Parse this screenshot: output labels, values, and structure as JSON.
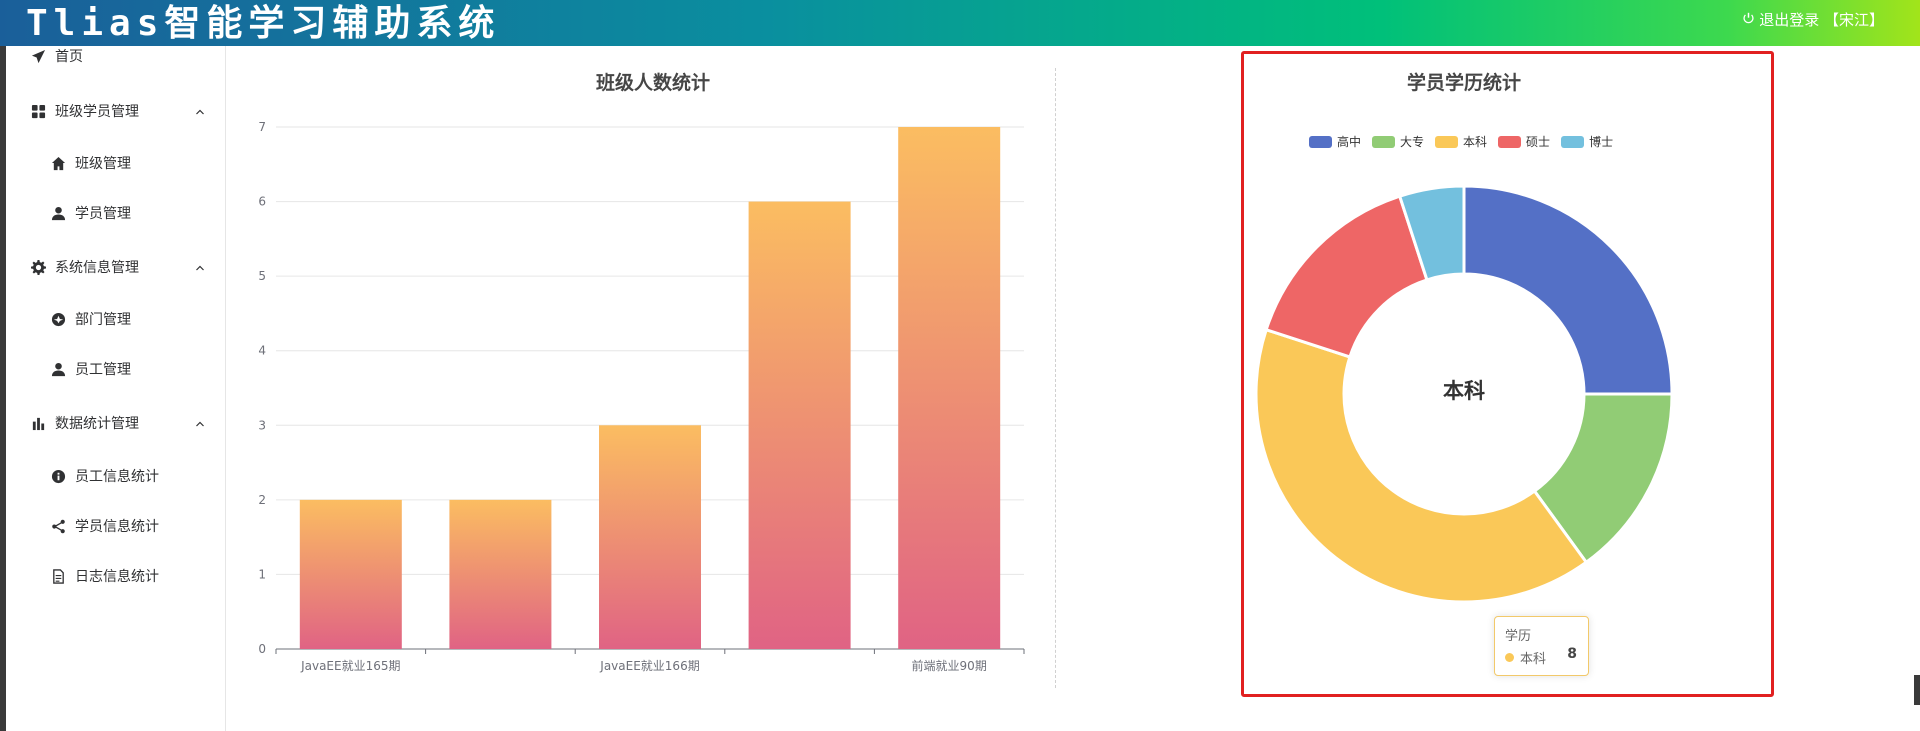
{
  "header": {
    "app_title": "Tlias智能学习辅助系统",
    "logout_label": "退出登录 【宋江】"
  },
  "sidebar": {
    "items": [
      {
        "label": "首页",
        "icon": "send-icon",
        "level": 1
      },
      {
        "label": "班级学员管理",
        "icon": "grid-icon",
        "level": 1,
        "expanded": true
      },
      {
        "label": "班级管理",
        "icon": "home-icon",
        "level": 2
      },
      {
        "label": "学员管理",
        "icon": "user-icon",
        "level": 2
      },
      {
        "label": "系统信息管理",
        "icon": "gear-icon",
        "level": 1,
        "expanded": true
      },
      {
        "label": "部门管理",
        "icon": "compass-icon",
        "level": 2
      },
      {
        "label": "员工管理",
        "icon": "user-icon",
        "level": 2
      },
      {
        "label": "数据统计管理",
        "icon": "bar-chart-icon",
        "level": 1,
        "expanded": true
      },
      {
        "label": "员工信息统计",
        "icon": "info-icon",
        "level": 2
      },
      {
        "label": "学员信息统计",
        "icon": "share-icon",
        "level": 2
      },
      {
        "label": "日志信息统计",
        "icon": "document-icon",
        "level": 2
      }
    ]
  },
  "tooltip": {
    "title": "学历",
    "series_label": "本科",
    "value": "8"
  },
  "donut_center_label": "本科",
  "colors": {
    "bar_top": "#fbbd61",
    "bar_bottom": "#e06384",
    "pie": [
      "#5470c6",
      "#91cc75",
      "#fac858",
      "#ee6666",
      "#73c0de"
    ]
  },
  "chart_data": [
    {
      "type": "bar",
      "title": "班级人数统计",
      "categories": [
        "JavaEE就业165期",
        "",
        "JavaEE就业166期",
        "",
        "前端就业90期"
      ],
      "values": [
        2,
        2,
        3,
        6,
        7
      ],
      "xlabel": "",
      "ylabel": "",
      "ylim": [
        0,
        7
      ],
      "yticks": [
        0,
        1,
        2,
        3,
        4,
        5,
        6,
        7
      ],
      "grid": true
    },
    {
      "type": "pie",
      "variant": "donut",
      "title": "学员学历统计",
      "legend_position": "top",
      "series_name": "学历",
      "labels": [
        "高中",
        "大专",
        "本科",
        "硕士",
        "博士"
      ],
      "values": [
        5,
        3,
        8,
        3,
        1
      ]
    }
  ]
}
